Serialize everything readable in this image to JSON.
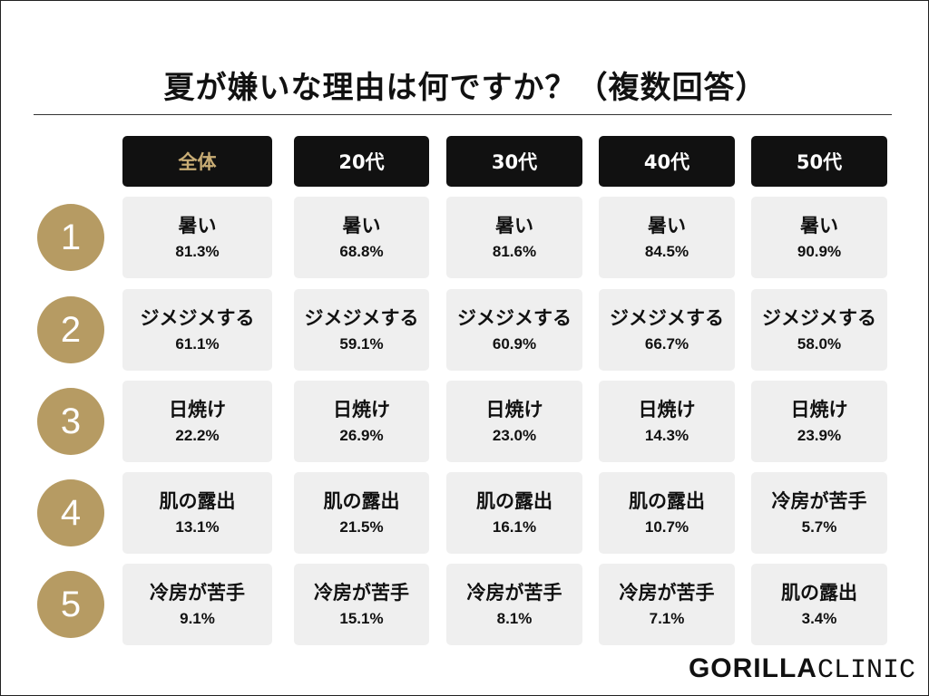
{
  "title": "夏が嫌いな理由は何ですか？（複数回答）",
  "logo": {
    "part1": "GORILLA",
    "part2": "CLINIC"
  },
  "chart_data": {
    "type": "table",
    "title": "夏が嫌いな理由は何ですか？（複数回答）",
    "columns": [
      "全体",
      "20代",
      "30代",
      "40代",
      "50代"
    ],
    "ranks": [
      "1",
      "2",
      "3",
      "4",
      "5"
    ],
    "rows": [
      [
        {
          "reason": "暑い",
          "value": "81.3%"
        },
        {
          "reason": "暑い",
          "value": "68.8%"
        },
        {
          "reason": "暑い",
          "value": "81.6%"
        },
        {
          "reason": "暑い",
          "value": "84.5%"
        },
        {
          "reason": "暑い",
          "value": "90.9%"
        }
      ],
      [
        {
          "reason": "ジメジメする",
          "value": "61.1%"
        },
        {
          "reason": "ジメジメする",
          "value": "59.1%"
        },
        {
          "reason": "ジメジメする",
          "value": "60.9%"
        },
        {
          "reason": "ジメジメする",
          "value": "66.7%"
        },
        {
          "reason": "ジメジメする",
          "value": "58.0%"
        }
      ],
      [
        {
          "reason": "日焼け",
          "value": "22.2%"
        },
        {
          "reason": "日焼け",
          "value": "26.9%"
        },
        {
          "reason": "日焼け",
          "value": "23.0%"
        },
        {
          "reason": "日焼け",
          "value": "14.3%"
        },
        {
          "reason": "日焼け",
          "value": "23.9%"
        }
      ],
      [
        {
          "reason": "肌の露出",
          "value": "13.1%"
        },
        {
          "reason": "肌の露出",
          "value": "21.5%"
        },
        {
          "reason": "肌の露出",
          "value": "16.1%"
        },
        {
          "reason": "肌の露出",
          "value": "10.7%"
        },
        {
          "reason": "冷房が苦手",
          "value": "5.7%"
        }
      ],
      [
        {
          "reason": "冷房が苦手",
          "value": "9.1%"
        },
        {
          "reason": "冷房が苦手",
          "value": "15.1%"
        },
        {
          "reason": "冷房が苦手",
          "value": "8.1%"
        },
        {
          "reason": "冷房が苦手",
          "value": "7.1%"
        },
        {
          "reason": "肌の露出",
          "value": "3.4%"
        }
      ]
    ]
  },
  "colors": {
    "header_bg": "#111111",
    "header_text": "#ffffff",
    "header_first_text": "#c9ad75",
    "rank_circle": "#b69b63",
    "cell_bg": "#efefef"
  }
}
